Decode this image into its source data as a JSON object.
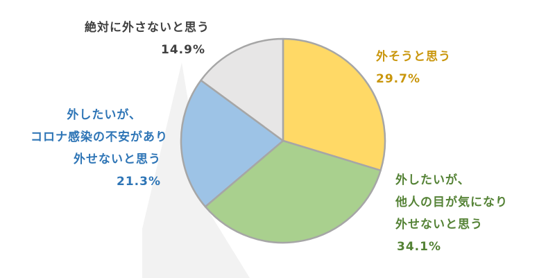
{
  "chart_data": {
    "type": "pie",
    "start_angle_deg": 0,
    "direction": "clockwise",
    "colors": {
      "slice_border": "#a6a6a6",
      "shadow": "#f2f2f2"
    },
    "slices": [
      {
        "key": "remove",
        "value": 29.7,
        "value_label": "29.7%",
        "label_lines": [
          "外そうと思う"
        ],
        "color": "#ffd966",
        "label_color": "#c9960c"
      },
      {
        "key": "others",
        "value": 34.1,
        "value_label": "34.1%",
        "label_lines": [
          "外したいが、",
          "他人の目が気になり",
          "外せないと思う"
        ],
        "color": "#a9d08e",
        "label_color": "#548235"
      },
      {
        "key": "corona",
        "value": 21.3,
        "value_label": "21.3%",
        "label_lines": [
          "外したいが、",
          "コロナ感染の不安があり",
          "外せないと思う"
        ],
        "color": "#9dc3e6",
        "label_color": "#2e75b6"
      },
      {
        "key": "keep",
        "value": 14.9,
        "value_label": "14.9%",
        "label_lines": [
          "絶対に外さないと思う"
        ],
        "color": "#e7e6e6",
        "label_color": "#404040"
      }
    ]
  }
}
